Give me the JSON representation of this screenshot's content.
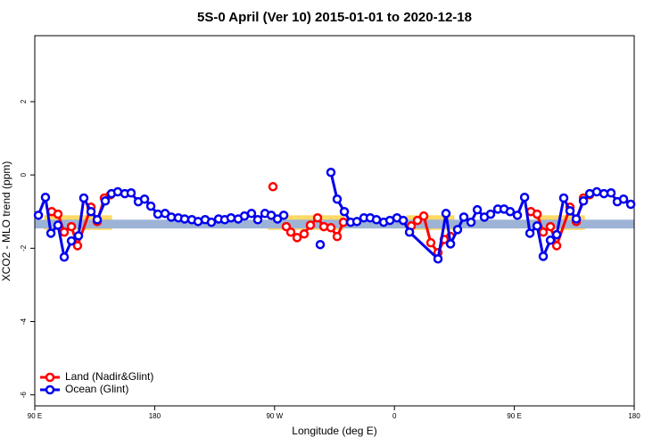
{
  "chart_data": {
    "type": "line",
    "title": "5S-0 April (Ver 10)   2015-01-01 to 2020-12-18",
    "x_label": "Longitude (deg E)",
    "y_label": "XCO2 - MLO trend (ppm)",
    "xlim": [
      90,
      540
    ],
    "ylim": [
      -6.3,
      3.8
    ],
    "xticks": [
      {
        "value": 90,
        "label": "90 E"
      },
      {
        "value": 180,
        "label": "180"
      },
      {
        "value": 270,
        "label": "90 W"
      },
      {
        "value": 360,
        "label": "0"
      },
      {
        "value": 450,
        "label": "90 E"
      },
      {
        "value": 540,
        "label": "180"
      }
    ],
    "yticks": [
      2,
      0,
      -2,
      -4,
      -6
    ],
    "legend": "bottom-left",
    "bands": [
      {
        "color": "#ffd966",
        "xlim": [
          97,
          148
        ],
        "ylim": [
          -1.5,
          -1.1
        ]
      },
      {
        "color": "#ffd966",
        "xlim": [
          265,
          322
        ],
        "ylim": [
          -1.5,
          -1.1
        ]
      },
      {
        "color": "#ffd966",
        "xlim": [
          369,
          405
        ],
        "ylim": [
          -1.5,
          -1.1
        ]
      },
      {
        "color": "#ffd966",
        "xlim": [
          466,
          503
        ],
        "ylim": [
          -1.5,
          -1.1
        ]
      },
      {
        "color": "#9db3d6",
        "xlim": [
          90,
          540
        ],
        "ylim": [
          -1.46,
          -1.22
        ]
      }
    ],
    "series": [
      {
        "name": "Land (Nadir&Glint)",
        "color": "#ff0000",
        "x": [
          102.7,
          107.4,
          112.1,
          117.5,
          122.1,
          132.2,
          136.9,
          142.2,
          146.9,
          null,
          268.8,
          null,
          278.8,
          282.2,
          286.9,
          292.2,
          296.9,
          302.3,
          307.0,
          312.3,
          317.0,
          321.7,
          null,
          372.6,
          377.3,
          382.0,
          387.3,
          392.7,
          397.4,
          402.1,
          null,
          462.4,
          467.1,
          471.7,
          477.1,
          481.8,
          491.8,
          496.5,
          501.9,
          506.6
        ],
        "values": [
          -1.0,
          -1.07,
          -1.56,
          -1.41,
          -1.93,
          -0.88,
          -1.27,
          -0.63,
          -0.54,
          null,
          -0.32,
          null,
          -1.41,
          -1.56,
          -1.71,
          -1.61,
          -1.37,
          -1.17,
          -1.41,
          -1.44,
          -1.68,
          -1.29,
          null,
          -1.39,
          -1.24,
          -1.12,
          -1.85,
          -2.12,
          -1.76,
          -1.68,
          null,
          -1.0,
          -1.07,
          -1.56,
          -1.41,
          -1.93,
          -0.88,
          -1.27,
          -0.63,
          -0.54
        ]
      },
      {
        "name": "Ocean (Glint)",
        "color": "#0000ee",
        "x": [
          92.7,
          98.0,
          102.1,
          107.4,
          112.1,
          117.5,
          122.8,
          126.8,
          132.2,
          136.9,
          142.9,
          147.6,
          152.3,
          157.6,
          162.3,
          167.7,
          172.4,
          177.1,
          182.4,
          187.8,
          192.5,
          197.8,
          202.5,
          207.9,
          212.6,
          217.9,
          222.6,
          228.0,
          232.6,
          237.3,
          242.7,
          247.4,
          252.7,
          257.4,
          262.8,
          267.5,
          272.2,
          276.9,
          null,
          304.3,
          null,
          312.3,
          317.0,
          322.4,
          327.1,
          331.8,
          337.1,
          341.8,
          346.5,
          351.9,
          356.6,
          361.9,
          366.6,
          371.3,
          392.7,
          398.7,
          402.1,
          407.4,
          412.1,
          417.5,
          422.2,
          427.5,
          432.2,
          437.6,
          442.3,
          446.9,
          452.3,
          457.7,
          461.7,
          467.1,
          471.7,
          477.1,
          481.8,
          487.1,
          491.8,
          496.5,
          501.9,
          506.6,
          511.9,
          517.3,
          522.6,
          527.3,
          532.0,
          537.4
        ],
        "values": [
          -1.1,
          -0.61,
          -1.59,
          -1.37,
          -2.24,
          -1.8,
          -1.66,
          -0.63,
          -1.0,
          -1.22,
          -0.71,
          -0.51,
          -0.46,
          -0.51,
          -0.49,
          -0.73,
          -0.66,
          -0.85,
          -1.07,
          -1.05,
          -1.15,
          -1.17,
          -1.2,
          -1.22,
          -1.27,
          -1.22,
          -1.29,
          -1.2,
          -1.22,
          -1.17,
          -1.2,
          -1.12,
          -1.05,
          -1.22,
          -1.05,
          -1.1,
          -1.2,
          -1.1,
          null,
          -1.9,
          null,
          0.07,
          -0.66,
          -1.0,
          -1.29,
          -1.27,
          -1.17,
          -1.17,
          -1.22,
          -1.29,
          -1.24,
          -1.17,
          -1.24,
          -1.56,
          -2.29,
          -1.05,
          -1.88,
          -1.49,
          -1.15,
          -1.29,
          -0.95,
          -1.15,
          -1.07,
          -0.93,
          -0.93,
          -1.0,
          -1.1,
          -0.61,
          -1.59,
          -1.39,
          -2.22,
          -1.78,
          -1.63,
          -0.63,
          -0.98,
          -1.2,
          -0.71,
          -0.51,
          -0.46,
          -0.51,
          -0.49,
          -0.73,
          -0.66,
          -0.8
        ]
      }
    ]
  }
}
